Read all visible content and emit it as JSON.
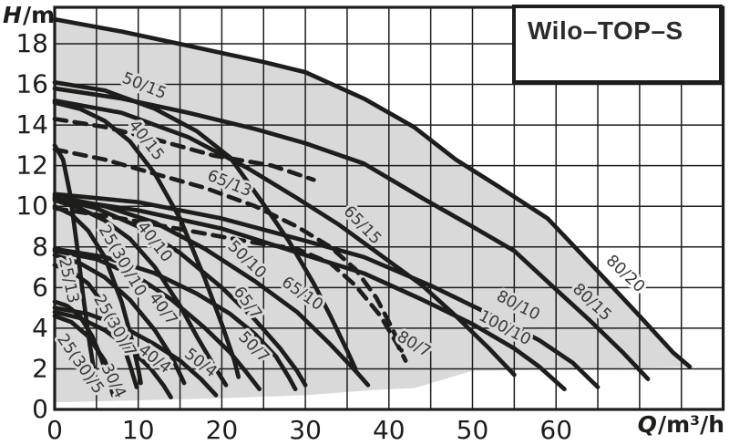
{
  "title": "Wilo–TOP–S",
  "axes": {
    "y_symbol": "H",
    "y_unit": "/m",
    "x_symbol": "Q",
    "x_unit": "/m³/h"
  },
  "chart_data": {
    "type": "line",
    "title": "Wilo–TOP–S",
    "xlabel": "Q/m³/h",
    "ylabel": "H/m",
    "xlim": [
      0,
      80
    ],
    "ylim": [
      0,
      19.8
    ],
    "x_ticks": [
      0,
      10,
      20,
      30,
      40,
      50,
      60
    ],
    "y_ticks": [
      0,
      2,
      4,
      6,
      8,
      10,
      12,
      14,
      16,
      18
    ],
    "x_grid_step": 5,
    "y_grid_step": 2,
    "grid": "on",
    "legend_position": "none",
    "colors": {
      "ink": "#1d1d1b",
      "curve": "#1d1d1b",
      "grid": "#1d1d1b",
      "envelope_fill": "#d9d9d9",
      "label": "#3a3a39",
      "background": "#ffffff"
    },
    "envelope": [
      [
        0,
        0.35
      ],
      [
        10,
        0.45
      ],
      [
        20,
        0.55
      ],
      [
        30,
        0.7
      ],
      [
        38,
        0.95
      ],
      [
        43,
        1.05
      ],
      [
        50,
        1.9
      ],
      [
        58,
        1.95
      ],
      [
        65,
        2.0
      ],
      [
        70,
        2.05
      ],
      [
        76,
        2.1
      ],
      [
        74,
        2.8
      ],
      [
        70,
        4.6
      ],
      [
        65,
        6.8
      ],
      [
        59,
        9.4
      ],
      [
        53,
        11.0
      ],
      [
        48,
        12.3
      ],
      [
        43,
        13.9
      ],
      [
        37,
        15.3
      ],
      [
        30,
        16.6
      ],
      [
        25,
        17.1
      ],
      [
        16,
        17.9
      ],
      [
        8,
        18.6
      ],
      [
        0,
        19.2
      ]
    ],
    "series": [
      {
        "name": "80/20",
        "style": "solid",
        "label_pos": [
          67.9,
          6.5
        ],
        "label_rot": 43,
        "halo": "#ffffff",
        "points": [
          [
            0,
            19.2
          ],
          [
            8,
            18.6
          ],
          [
            16,
            17.9
          ],
          [
            25,
            17.1
          ],
          [
            30,
            16.6
          ],
          [
            37,
            15.3
          ],
          [
            43,
            13.9
          ],
          [
            48,
            12.3
          ],
          [
            53,
            11.0
          ],
          [
            59,
            9.4
          ],
          [
            65,
            6.8
          ],
          [
            70,
            4.6
          ],
          [
            74,
            2.8
          ],
          [
            76,
            2.1
          ]
        ]
      },
      {
        "name": "80/15",
        "style": "solid",
        "label_pos": [
          63.9,
          5.1
        ],
        "label_rot": 43,
        "points": [
          [
            0,
            15.8
          ],
          [
            8,
            15.3
          ],
          [
            16,
            14.6
          ],
          [
            24,
            13.8
          ],
          [
            30,
            13.1
          ],
          [
            37,
            12.1
          ],
          [
            44,
            10.4
          ],
          [
            50,
            9.0
          ],
          [
            55,
            7.8
          ],
          [
            60,
            5.9
          ],
          [
            64,
            4.4
          ],
          [
            68,
            2.8
          ],
          [
            71,
            1.5
          ]
        ]
      },
      {
        "name": "65/15",
        "style": "solid",
        "label_pos": [
          36.4,
          8.9
        ],
        "label_rot": 46,
        "points": [
          [
            0,
            15.2
          ],
          [
            8,
            14.6
          ],
          [
            16,
            13.4
          ],
          [
            23,
            11.9
          ],
          [
            29,
            10.4
          ],
          [
            34,
            9.1
          ],
          [
            39,
            7.6
          ],
          [
            44,
            6.1
          ],
          [
            48,
            4.6
          ],
          [
            52,
            3.0
          ],
          [
            55,
            1.7
          ]
        ]
      },
      {
        "name": "50/15",
        "style": "solid",
        "label_pos": [
          10.5,
          15.7
        ],
        "label_rot": 22,
        "points": [
          [
            0,
            16.1
          ],
          [
            6,
            15.7
          ],
          [
            12,
            14.8
          ],
          [
            17,
            13.7
          ],
          [
            21,
            12.4
          ],
          [
            25,
            10.1
          ],
          [
            28,
            8.3
          ],
          [
            31,
            6.2
          ],
          [
            33,
            4.6
          ],
          [
            35,
            2.9
          ],
          [
            36,
            2.0
          ]
        ]
      },
      {
        "name": "40/15",
        "style": "solid",
        "label_pos": [
          10.5,
          13.1
        ],
        "label_rot": 52,
        "points": [
          [
            0,
            15.1
          ],
          [
            3,
            14.8
          ],
          [
            6,
            14.2
          ],
          [
            9,
            13.2
          ],
          [
            12,
            11.6
          ],
          [
            15,
            9.4
          ],
          [
            18,
            6.4
          ],
          [
            20,
            4.2
          ],
          [
            21.5,
            2.4
          ],
          [
            22,
            1.6
          ]
        ]
      },
      {
        "name": "100/10",
        "style": "solid",
        "label_pos": [
          53.6,
          3.8
        ],
        "label_rot": 28,
        "points": [
          [
            0,
            10.4
          ],
          [
            10,
            9.8
          ],
          [
            20,
            8.9
          ],
          [
            30,
            7.6
          ],
          [
            37,
            6.7
          ],
          [
            44,
            5.4
          ],
          [
            50,
            4.2
          ],
          [
            55,
            3.0
          ],
          [
            58,
            2.1
          ],
          [
            61,
            1.0
          ]
        ]
      },
      {
        "name": "80/10",
        "style": "solid",
        "label_pos": [
          55.2,
          4.9
        ],
        "label_rot": 27,
        "points": [
          [
            0,
            10.6
          ],
          [
            10,
            10.2
          ],
          [
            20,
            9.4
          ],
          [
            30,
            8.3
          ],
          [
            37,
            7.5
          ],
          [
            45,
            6.1
          ],
          [
            52,
            4.7
          ],
          [
            58,
            3.4
          ],
          [
            62,
            2.3
          ],
          [
            65,
            1.1
          ]
        ]
      },
      {
        "name": "65/10",
        "style": "solid",
        "label_pos": [
          29.3,
          5.5
        ],
        "label_rot": 35,
        "points": [
          [
            0,
            10.5
          ],
          [
            6,
            10.0
          ],
          [
            12,
            9.2
          ],
          [
            18,
            7.9
          ],
          [
            24,
            6.3
          ],
          [
            29,
            4.8
          ],
          [
            33,
            3.2
          ],
          [
            36,
            1.9
          ],
          [
            37.5,
            1.2
          ]
        ]
      },
      {
        "name": "50/10",
        "style": "solid",
        "label_pos": [
          22.6,
          7.2
        ],
        "label_rot": 44,
        "points": [
          [
            0,
            10.4
          ],
          [
            5,
            9.9
          ],
          [
            10,
            9.0
          ],
          [
            15,
            7.7
          ],
          [
            20,
            6.0
          ],
          [
            24,
            4.4
          ],
          [
            27,
            3.0
          ],
          [
            29,
            1.9
          ],
          [
            30,
            1.2
          ]
        ]
      },
      {
        "name": "40/10",
        "style": "solid",
        "label_pos": [
          11.5,
          8.1
        ],
        "label_rot": 52,
        "points": [
          [
            0,
            10.3
          ],
          [
            3,
            9.9
          ],
          [
            6,
            9.3
          ],
          [
            9,
            8.4
          ],
          [
            12,
            7.0
          ],
          [
            15,
            5.1
          ],
          [
            17,
            3.6
          ],
          [
            19,
            2.2
          ],
          [
            20.5,
            1.2
          ]
        ]
      },
      {
        "name": "25(30)/10",
        "style": "solid",
        "label_pos": [
          7.6,
          7.2
        ],
        "label_rot": 60,
        "points": [
          [
            0,
            10.0
          ],
          [
            2,
            9.6
          ],
          [
            4,
            8.8
          ],
          [
            6,
            7.5
          ],
          [
            8,
            5.3
          ],
          [
            9,
            3.8
          ],
          [
            10,
            2.0
          ],
          [
            10.3,
            1.3
          ]
        ]
      },
      {
        "name": "25/13",
        "style": "solid",
        "label_pos": [
          1.1,
          6.3
        ],
        "label_rot": 78,
        "points": [
          [
            0,
            13.0
          ],
          [
            1,
            12.3
          ],
          [
            1.8,
            10.7
          ],
          [
            2.6,
            8.3
          ],
          [
            3.4,
            5.6
          ],
          [
            4.2,
            3.2
          ],
          [
            4.8,
            1.7
          ]
        ]
      },
      {
        "name": "65/7",
        "style": "solid",
        "label_pos": [
          22.6,
          5.1
        ],
        "label_rot": 54,
        "points": [
          [
            0,
            7.9
          ],
          [
            6,
            7.5
          ],
          [
            12,
            6.7
          ],
          [
            17,
            5.7
          ],
          [
            21,
            4.7
          ],
          [
            24,
            3.7
          ],
          [
            26.5,
            2.6
          ],
          [
            28,
            1.6
          ],
          [
            28.8,
            1.0
          ]
        ]
      },
      {
        "name": "50/7",
        "style": "solid",
        "label_pos": [
          23.4,
          2.9
        ],
        "label_rot": 46,
        "points": [
          [
            0,
            7.8
          ],
          [
            5,
            7.4
          ],
          [
            10,
            6.5
          ],
          [
            14,
            5.4
          ],
          [
            18,
            4.0
          ],
          [
            21,
            2.8
          ],
          [
            23,
            1.8
          ],
          [
            24.5,
            1.0
          ]
        ]
      },
      {
        "name": "40/7",
        "style": "solid",
        "label_pos": [
          12.5,
          4.8
        ],
        "label_rot": 54,
        "points": [
          [
            0,
            7.6
          ],
          [
            3,
            7.2
          ],
          [
            6,
            6.5
          ],
          [
            9,
            5.4
          ],
          [
            12,
            3.9
          ],
          [
            14,
            2.6
          ],
          [
            15.5,
            1.3
          ]
        ]
      },
      {
        "name": "25(30)/7",
        "style": "solid",
        "label_pos": [
          6.7,
          4.0
        ],
        "label_rot": 60,
        "points": [
          [
            0,
            7.1
          ],
          [
            2,
            6.8
          ],
          [
            4,
            6.2
          ],
          [
            6,
            5.1
          ],
          [
            8,
            3.4
          ],
          [
            9,
            2.2
          ],
          [
            9.8,
            1.1
          ]
        ]
      },
      {
        "name": "25(30)/5",
        "style": "solid",
        "label_pos": [
          2.6,
          2.1
        ],
        "label_rot": 55,
        "points": [
          [
            0,
            5.3
          ],
          [
            1.5,
            5.1
          ],
          [
            3,
            4.6
          ],
          [
            4.5,
            3.6
          ],
          [
            5.5,
            2.6
          ],
          [
            6.5,
            1.4
          ],
          [
            7,
            0.7
          ]
        ]
      },
      {
        "name": "30/4",
        "style": "solid",
        "label_pos": [
          6.5,
          1.3
        ],
        "label_rot": 64,
        "points": [
          [
            0,
            4.6
          ],
          [
            2,
            4.3
          ],
          [
            4,
            3.6
          ],
          [
            6,
            2.4
          ],
          [
            7.3,
            1.1
          ],
          [
            7.8,
            0.6
          ]
        ]
      },
      {
        "name": "40/4",
        "style": "solid",
        "label_pos": [
          11.6,
          2.3
        ],
        "label_rot": 38,
        "points": [
          [
            0,
            4.8
          ],
          [
            3,
            4.5
          ],
          [
            6,
            3.9
          ],
          [
            9,
            3.0
          ],
          [
            11.5,
            2.0
          ],
          [
            13,
            1.2
          ],
          [
            13.9,
            0.6
          ]
        ]
      },
      {
        "name": "50/4",
        "style": "solid",
        "label_pos": [
          17.1,
          2.1
        ],
        "label_rot": 38,
        "points": [
          [
            0,
            5.0
          ],
          [
            4,
            4.7
          ],
          [
            8,
            4.1
          ],
          [
            12,
            3.2
          ],
          [
            15,
            2.4
          ],
          [
            17.5,
            1.5
          ],
          [
            19.3,
            0.7
          ]
        ]
      },
      {
        "name": "65/13",
        "style": "dashed",
        "label_pos": [
          20.7,
          10.9
        ],
        "label_rot": 22,
        "points": [
          [
            0,
            12.8
          ],
          [
            6,
            12.3
          ],
          [
            12,
            11.6
          ],
          [
            18,
            10.9
          ],
          [
            24,
            10.0
          ],
          [
            29,
            9.0
          ],
          [
            33,
            8.0
          ],
          [
            36,
            6.9
          ],
          [
            38.5,
            5.5
          ],
          [
            40.5,
            3.9
          ],
          [
            41.5,
            2.9
          ]
        ]
      },
      {
        "name": "80/7",
        "style": "dashed",
        "label_pos": [
          42.7,
          3.0
        ],
        "label_rot": 30,
        "points": [
          [
            0,
            9.9
          ],
          [
            8,
            9.4
          ],
          [
            16,
            8.8
          ],
          [
            24,
            8.2
          ],
          [
            29,
            7.9
          ],
          [
            33,
            7.2
          ],
          [
            36,
            6.1
          ],
          [
            39,
            4.6
          ],
          [
            41,
            3.2
          ],
          [
            42,
            2.4
          ]
        ]
      },
      {
        "name": "",
        "style": "dashed",
        "label_pos": null,
        "label_rot": 0,
        "points": [
          [
            0,
            14.3
          ],
          [
            6,
            13.9
          ],
          [
            12,
            13.3
          ],
          [
            19,
            12.5
          ],
          [
            26,
            12.0
          ],
          [
            31,
            11.3
          ]
        ]
      }
    ]
  }
}
